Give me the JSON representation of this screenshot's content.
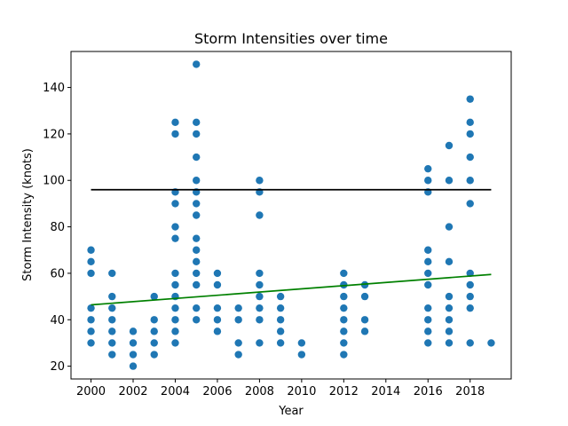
{
  "chart_data": {
    "type": "scatter",
    "title": "Storm Intensities over time",
    "xlabel": "Year",
    "ylabel": "Storm Intensity (knots)",
    "xlim": [
      1999.05,
      2019.95
    ],
    "ylim": [
      14.5,
      155.5
    ],
    "xticks": [
      2000,
      2002,
      2004,
      2006,
      2008,
      2010,
      2012,
      2014,
      2016,
      2018
    ],
    "yticks": [
      20,
      40,
      60,
      80,
      100,
      120,
      140
    ],
    "grid": false,
    "colors": {
      "points": "#1f77b4",
      "trend": "#008000",
      "threshold": "#000000"
    },
    "series": [
      {
        "kind": "points",
        "points": [
          [
            2000,
            70
          ],
          [
            2000,
            65
          ],
          [
            2000,
            60
          ],
          [
            2000,
            45
          ],
          [
            2000,
            40
          ],
          [
            2000,
            35
          ],
          [
            2000,
            30
          ],
          [
            2001,
            60
          ],
          [
            2001,
            50
          ],
          [
            2001,
            45
          ],
          [
            2001,
            40
          ],
          [
            2001,
            35
          ],
          [
            2001,
            30
          ],
          [
            2001,
            25
          ],
          [
            2002,
            35
          ],
          [
            2002,
            30
          ],
          [
            2002,
            25
          ],
          [
            2002,
            20
          ],
          [
            2003,
            50
          ],
          [
            2003,
            40
          ],
          [
            2003,
            35
          ],
          [
            2003,
            30
          ],
          [
            2003,
            25
          ],
          [
            2004,
            125
          ],
          [
            2004,
            120
          ],
          [
            2004,
            95
          ],
          [
            2004,
            90
          ],
          [
            2004,
            80
          ],
          [
            2004,
            75
          ],
          [
            2004,
            60
          ],
          [
            2004,
            55
          ],
          [
            2004,
            50
          ],
          [
            2004,
            45
          ],
          [
            2004,
            40
          ],
          [
            2004,
            35
          ],
          [
            2004,
            30
          ],
          [
            2005,
            150
          ],
          [
            2005,
            125
          ],
          [
            2005,
            120
          ],
          [
            2005,
            110
          ],
          [
            2005,
            100
          ],
          [
            2005,
            95
          ],
          [
            2005,
            90
          ],
          [
            2005,
            85
          ],
          [
            2005,
            75
          ],
          [
            2005,
            70
          ],
          [
            2005,
            65
          ],
          [
            2005,
            60
          ],
          [
            2005,
            55
          ],
          [
            2005,
            45
          ],
          [
            2005,
            40
          ],
          [
            2006,
            60
          ],
          [
            2006,
            55
          ],
          [
            2006,
            45
          ],
          [
            2006,
            40
          ],
          [
            2006,
            35
          ],
          [
            2007,
            45
          ],
          [
            2007,
            40
          ],
          [
            2007,
            30
          ],
          [
            2007,
            25
          ],
          [
            2008,
            100
          ],
          [
            2008,
            95
          ],
          [
            2008,
            85
          ],
          [
            2008,
            60
          ],
          [
            2008,
            55
          ],
          [
            2008,
            50
          ],
          [
            2008,
            45
          ],
          [
            2008,
            40
          ],
          [
            2008,
            30
          ],
          [
            2009,
            50
          ],
          [
            2009,
            45
          ],
          [
            2009,
            40
          ],
          [
            2009,
            35
          ],
          [
            2009,
            30
          ],
          [
            2010,
            30
          ],
          [
            2010,
            25
          ],
          [
            2012,
            60
          ],
          [
            2012,
            55
          ],
          [
            2012,
            50
          ],
          [
            2012,
            45
          ],
          [
            2012,
            40
          ],
          [
            2012,
            35
          ],
          [
            2012,
            30
          ],
          [
            2012,
            25
          ],
          [
            2013,
            55
          ],
          [
            2013,
            50
          ],
          [
            2013,
            40
          ],
          [
            2013,
            35
          ],
          [
            2016,
            105
          ],
          [
            2016,
            100
          ],
          [
            2016,
            95
          ],
          [
            2016,
            70
          ],
          [
            2016,
            65
          ],
          [
            2016,
            60
          ],
          [
            2016,
            55
          ],
          [
            2016,
            45
          ],
          [
            2016,
            40
          ],
          [
            2016,
            35
          ],
          [
            2016,
            30
          ],
          [
            2017,
            115
          ],
          [
            2017,
            100
          ],
          [
            2017,
            80
          ],
          [
            2017,
            65
          ],
          [
            2017,
            50
          ],
          [
            2017,
            45
          ],
          [
            2017,
            40
          ],
          [
            2017,
            35
          ],
          [
            2017,
            30
          ],
          [
            2018,
            135
          ],
          [
            2018,
            125
          ],
          [
            2018,
            120
          ],
          [
            2018,
            110
          ],
          [
            2018,
            100
          ],
          [
            2018,
            90
          ],
          [
            2018,
            60
          ],
          [
            2018,
            55
          ],
          [
            2018,
            50
          ],
          [
            2018,
            45
          ],
          [
            2018,
            30
          ],
          [
            2019,
            30
          ]
        ]
      },
      {
        "kind": "line",
        "x": [
          2000,
          2019
        ],
        "y": [
          96,
          96
        ]
      },
      {
        "kind": "line",
        "x": [
          2000,
          2019
        ],
        "y": [
          46.4,
          59.5
        ]
      }
    ]
  }
}
